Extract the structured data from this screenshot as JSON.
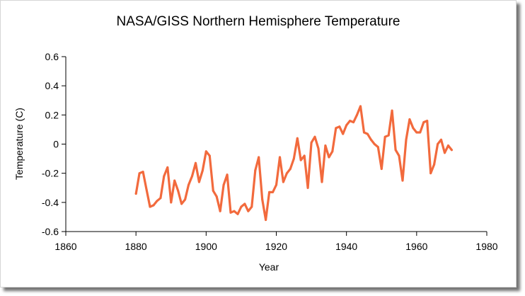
{
  "chart_data": {
    "type": "line",
    "title": "NASA/GISS Northern Hemisphere Temperature",
    "xlabel": "Year",
    "ylabel": "Temperature (C)",
    "xlim": [
      1860,
      1980
    ],
    "ylim": [
      -0.6,
      0.6
    ],
    "xticks": [
      1860,
      1880,
      1900,
      1920,
      1940,
      1960,
      1980
    ],
    "yticks": [
      0.6,
      0.4,
      0.2,
      0,
      -0.2,
      -0.4,
      -0.6
    ],
    "ytick_labels": [
      "0.6",
      "0.4",
      "0.2",
      "0",
      "-0.2",
      "-0.4",
      "-0.6"
    ],
    "grid": false,
    "legend": "none",
    "series": [
      {
        "color": "#f26a3d",
        "x": [
          1880,
          1881,
          1882,
          1883,
          1884,
          1885,
          1886,
          1887,
          1888,
          1889,
          1890,
          1891,
          1892,
          1893,
          1894,
          1895,
          1896,
          1897,
          1898,
          1899,
          1900,
          1901,
          1902,
          1903,
          1904,
          1905,
          1906,
          1907,
          1908,
          1909,
          1910,
          1911,
          1912,
          1913,
          1914,
          1915,
          1916,
          1917,
          1918,
          1919,
          1920,
          1921,
          1922,
          1923,
          1924,
          1925,
          1926,
          1927,
          1928,
          1929,
          1930,
          1931,
          1932,
          1933,
          1934,
          1935,
          1936,
          1937,
          1938,
          1939,
          1940,
          1941,
          1942,
          1943,
          1944,
          1945,
          1946,
          1947,
          1948,
          1949,
          1950,
          1951,
          1952,
          1953,
          1954,
          1955,
          1956,
          1957,
          1958,
          1959,
          1960,
          1961,
          1962,
          1963,
          1964,
          1965,
          1966,
          1967,
          1968,
          1969,
          1970
        ],
        "y": [
          -0.34,
          -0.2,
          -0.19,
          -0.31,
          -0.43,
          -0.42,
          -0.39,
          -0.37,
          -0.22,
          -0.16,
          -0.4,
          -0.25,
          -0.32,
          -0.41,
          -0.38,
          -0.28,
          -0.22,
          -0.13,
          -0.26,
          -0.18,
          -0.05,
          -0.08,
          -0.32,
          -0.36,
          -0.46,
          -0.28,
          -0.21,
          -0.47,
          -0.46,
          -0.48,
          -0.43,
          -0.41,
          -0.46,
          -0.43,
          -0.18,
          -0.09,
          -0.38,
          -0.52,
          -0.33,
          -0.33,
          -0.28,
          -0.09,
          -0.26,
          -0.2,
          -0.17,
          -0.1,
          0.04,
          -0.11,
          -0.08,
          -0.3,
          0.01,
          0.05,
          -0.03,
          -0.26,
          -0.01,
          -0.09,
          -0.05,
          0.11,
          0.12,
          0.07,
          0.13,
          0.16,
          0.15,
          0.2,
          0.26,
          0.08,
          0.07,
          0.03,
          0.0,
          -0.02,
          -0.17,
          0.05,
          0.06,
          0.23,
          -0.04,
          -0.08,
          -0.25,
          0.03,
          0.17,
          0.11,
          0.08,
          0.08,
          0.15,
          0.16,
          -0.2,
          -0.14,
          0.0,
          0.03,
          -0.06,
          -0.01,
          -0.04
        ]
      }
    ]
  }
}
